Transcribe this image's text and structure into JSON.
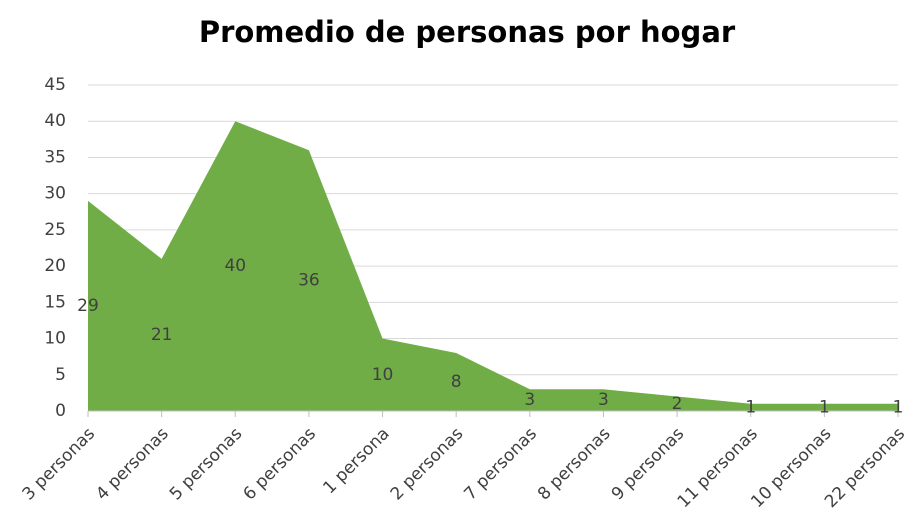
{
  "chart_data": {
    "type": "area",
    "title": "Promedio de personas por hogar",
    "categories": [
      "3 personas",
      "4 personas",
      "5 personas",
      "6 personas",
      "1 persona",
      "2 personas",
      "7 personas",
      "8 personas",
      "9 personas",
      "11 personas",
      "10 personas",
      "22 personas"
    ],
    "values": [
      29,
      21,
      40,
      36,
      10,
      8,
      3,
      3,
      2,
      1,
      1,
      1
    ],
    "color": "#70ad47",
    "ylim": [
      0,
      45
    ],
    "yticks": [
      0,
      5,
      10,
      15,
      20,
      25,
      30,
      35,
      40,
      45
    ],
    "grid": true
  }
}
